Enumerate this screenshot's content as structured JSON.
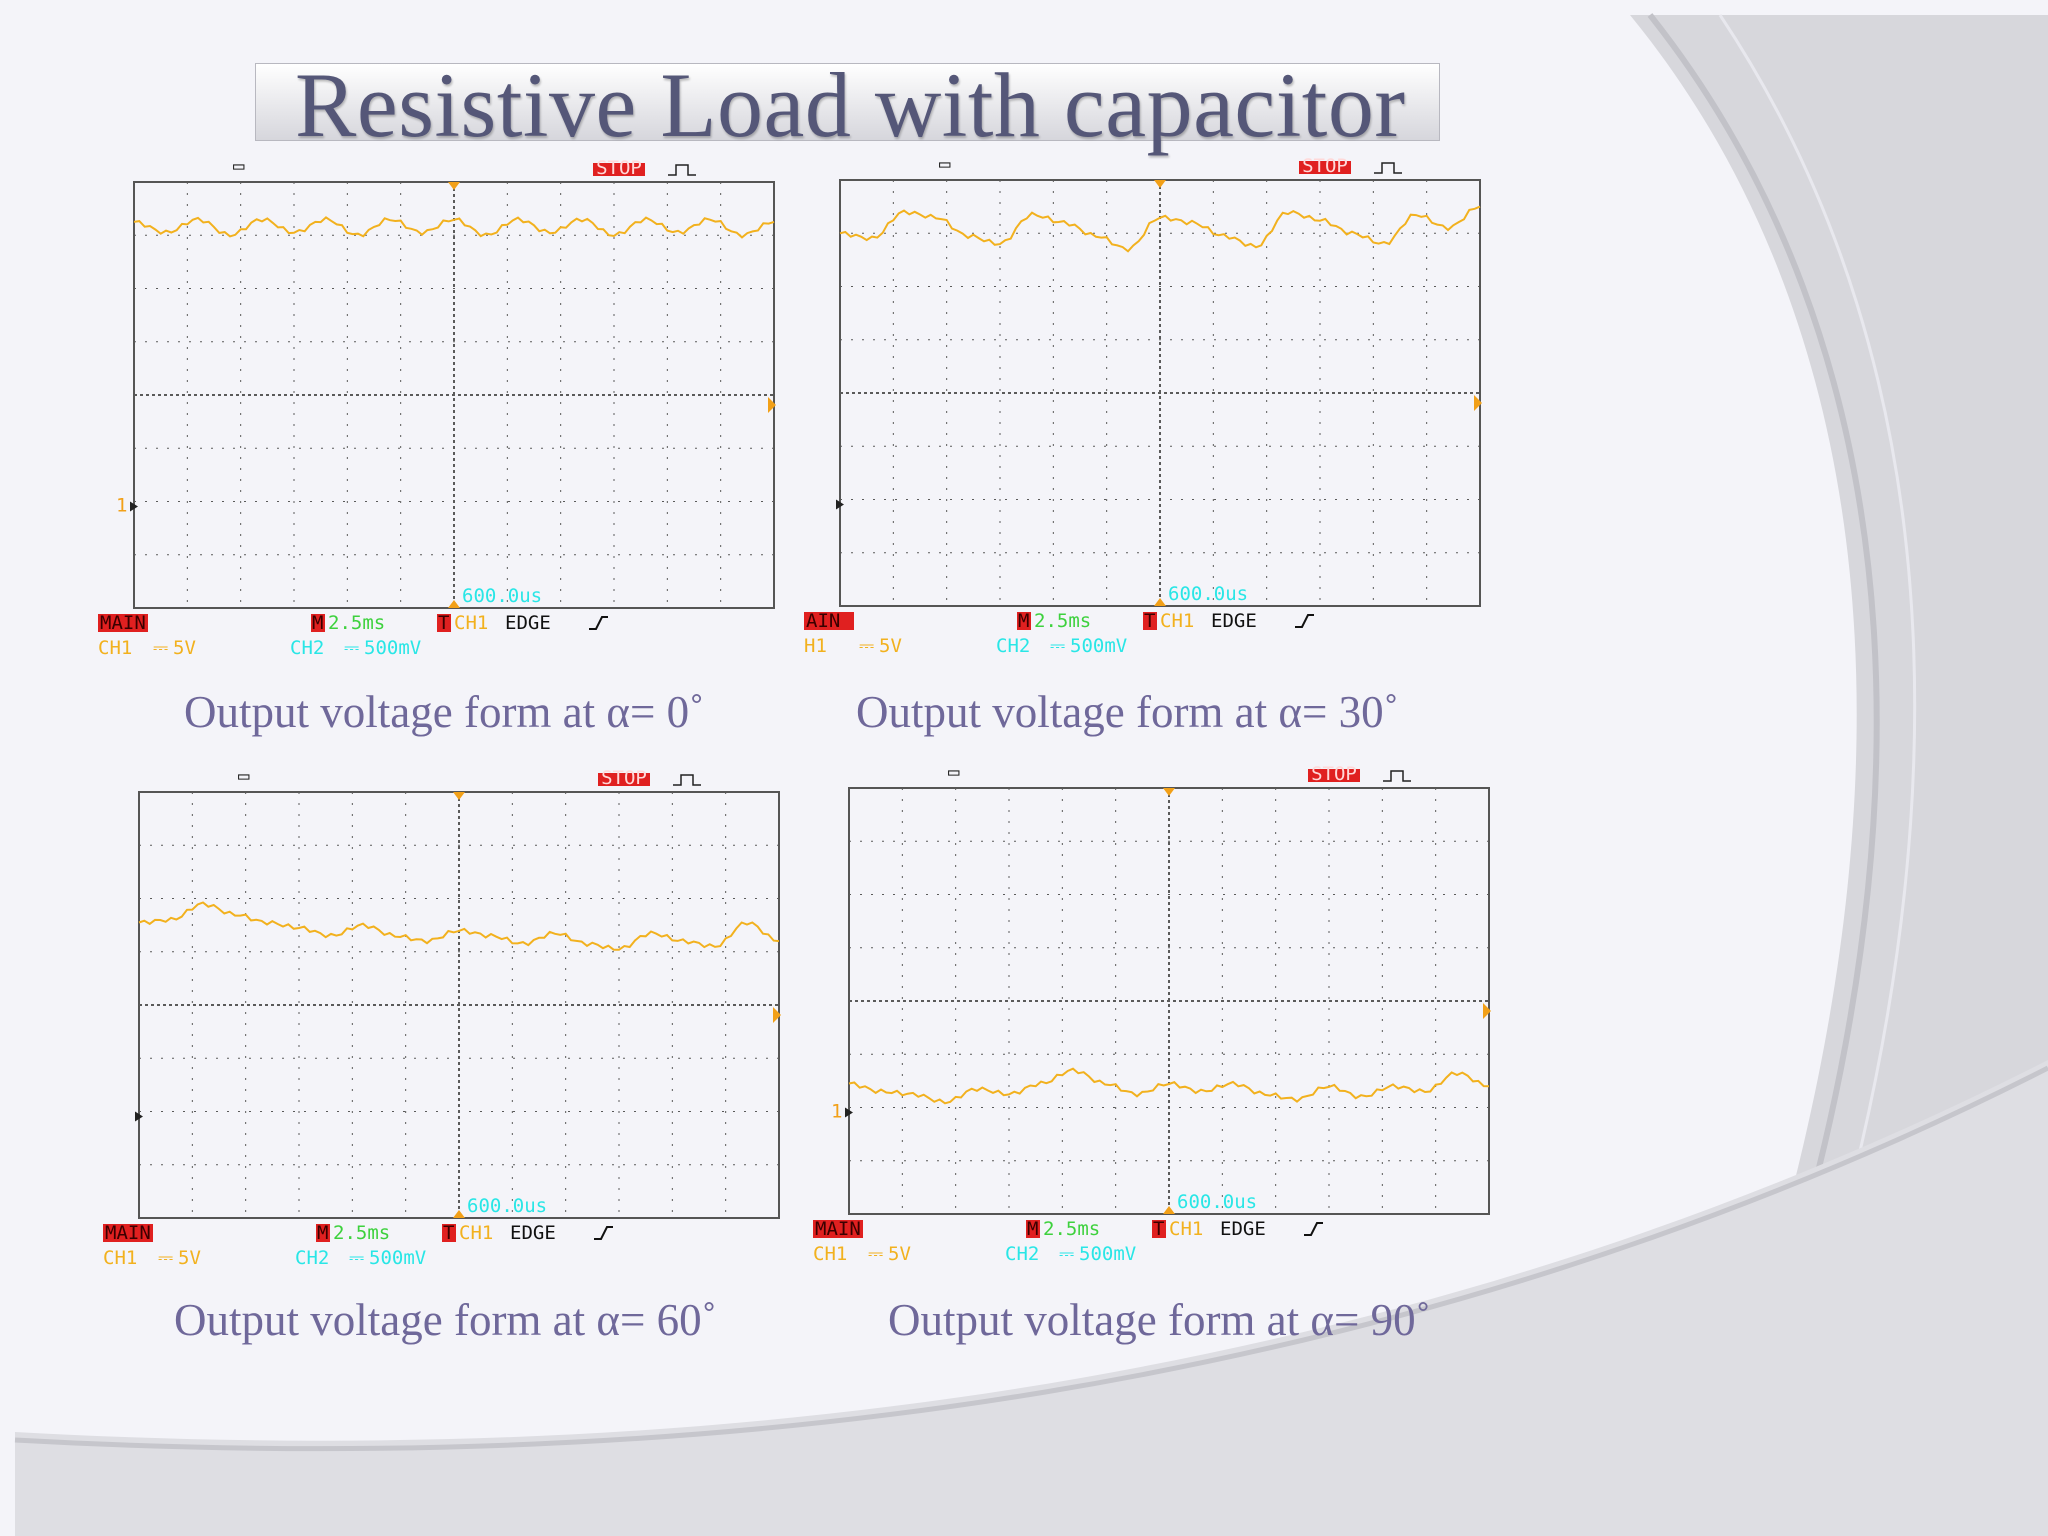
{
  "slide": {
    "title": "Resistive Load with capacitor",
    "colors": {
      "title_text": "#555778",
      "caption_text": "#6f689a",
      "trace": "#f2b11e",
      "grid": "#5a5a5a",
      "readout_cyan": "#29e6e6",
      "readout_red": "#e02020",
      "readout_yellow": "#f2b11e",
      "readout_green": "#3dd13d"
    }
  },
  "scopes": [
    {
      "caption": "Output voltage form at α= 0˚",
      "status": {
        "stop": "STOP",
        "trigger_marker": "1"
      },
      "readouts": {
        "main": "MAIN",
        "m_label": "M",
        "timebase": "2.5ms",
        "t_label": "T",
        "trig_source": "CH1",
        "trig_mode": "EDGE",
        "ch1": "CH1",
        "ch1_scale": "5V",
        "ch2": "CH2",
        "ch2_scale": "500mV",
        "time_offset": "600.0us"
      }
    },
    {
      "caption": "Output voltage form at α= 30˚",
      "status": {
        "stop": "STOP",
        "trigger_marker": ""
      },
      "readouts": {
        "main": "AIN",
        "m_label": "M",
        "timebase": "2.5ms",
        "t_label": "T",
        "trig_source": "CH1",
        "trig_mode": "EDGE",
        "ch1": "H1",
        "ch1_scale": "5V",
        "ch2": "CH2",
        "ch2_scale": "500mV",
        "time_offset": "600.0us"
      }
    },
    {
      "caption": "Output voltage form at α= 60˚",
      "status": {
        "stop": "STOP",
        "trigger_marker": ""
      },
      "readouts": {
        "main": "MAIN",
        "m_label": "M",
        "timebase": "2.5ms",
        "t_label": "T",
        "trig_source": "CH1",
        "trig_mode": "EDGE",
        "ch1": "CH1",
        "ch1_scale": "5V",
        "ch2": "CH2",
        "ch2_scale": "500mV",
        "time_offset": "600.0us"
      }
    },
    {
      "caption": "Output voltage form at α= 90˚",
      "status": {
        "stop": "STOP",
        "trigger_marker": "1"
      },
      "readouts": {
        "main": "MAIN",
        "m_label": "M",
        "timebase": "2.5ms",
        "t_label": "T",
        "trig_source": "CH1",
        "trig_mode": "EDGE",
        "ch1": "CH1",
        "ch1_scale": "5V",
        "ch2": "CH2",
        "ch2_scale": "500mV",
        "time_offset": "600.0us"
      }
    }
  ],
  "chart_data": [
    {
      "type": "line",
      "title": "",
      "xlabel": "",
      "ylabel": "",
      "grid": true,
      "xlim": [
        0,
        10
      ],
      "ylim": [
        -4,
        4
      ],
      "series": [
        {
          "name": "",
          "x": [
            0,
            0.5,
            1,
            1.5,
            2,
            2.5,
            3,
            3.5,
            4,
            4.5,
            5,
            5.5,
            6,
            6.5,
            7,
            7.5,
            8,
            8.5,
            9,
            9.5,
            10
          ],
          "values": [
            3.25,
            3.05,
            3.3,
            3.0,
            3.3,
            3.05,
            3.3,
            3.0,
            3.3,
            3.05,
            3.3,
            3.0,
            3.3,
            3.05,
            3.3,
            3.0,
            3.3,
            3.05,
            3.3,
            3.0,
            3.25
          ]
        }
      ]
    },
    {
      "type": "line",
      "title": "",
      "xlabel": "",
      "ylabel": "",
      "grid": true,
      "xlim": [
        0,
        10
      ],
      "ylim": [
        -4,
        4
      ],
      "series": [
        {
          "name": "",
          "x": [
            0,
            0.5,
            1,
            1.5,
            2,
            2.5,
            3,
            3.5,
            4,
            4.5,
            5,
            5.5,
            6,
            6.5,
            7,
            7.5,
            8,
            8.5,
            9,
            9.5,
            10
          ],
          "values": [
            3.0,
            2.9,
            3.4,
            3.3,
            2.95,
            2.8,
            3.35,
            3.2,
            2.95,
            2.7,
            3.3,
            3.2,
            2.95,
            2.75,
            3.4,
            3.25,
            3.0,
            2.8,
            3.35,
            3.1,
            3.5
          ]
        }
      ]
    },
    {
      "type": "line",
      "title": "",
      "xlabel": "",
      "ylabel": "",
      "grid": true,
      "xlim": [
        0,
        10
      ],
      "ylim": [
        -4,
        4
      ],
      "series": [
        {
          "name": "",
          "x": [
            0,
            0.5,
            1,
            1.5,
            2,
            2.5,
            3,
            3.5,
            4,
            4.5,
            5,
            5.5,
            6,
            6.5,
            7,
            7.5,
            8,
            8.5,
            9,
            9.5,
            10
          ],
          "values": [
            1.55,
            1.6,
            1.9,
            1.7,
            1.55,
            1.45,
            1.3,
            1.5,
            1.3,
            1.2,
            1.4,
            1.3,
            1.15,
            1.35,
            1.15,
            1.05,
            1.35,
            1.2,
            1.1,
            1.55,
            1.2
          ]
        }
      ]
    },
    {
      "type": "line",
      "title": "",
      "xlabel": "",
      "ylabel": "",
      "grid": true,
      "xlim": [
        0,
        10
      ],
      "ylim": [
        -4,
        4
      ],
      "series": [
        {
          "name": "",
          "x": [
            0,
            0.5,
            1,
            1.5,
            2,
            2.5,
            3,
            3.5,
            4,
            4.5,
            5,
            5.5,
            6,
            6.5,
            7,
            7.5,
            8,
            8.5,
            9,
            9.5,
            10
          ],
          "values": [
            -1.55,
            -1.7,
            -1.75,
            -1.9,
            -1.65,
            -1.75,
            -1.55,
            -1.3,
            -1.55,
            -1.75,
            -1.55,
            -1.7,
            -1.55,
            -1.75,
            -1.85,
            -1.6,
            -1.8,
            -1.6,
            -1.7,
            -1.35,
            -1.6
          ]
        }
      ]
    }
  ]
}
